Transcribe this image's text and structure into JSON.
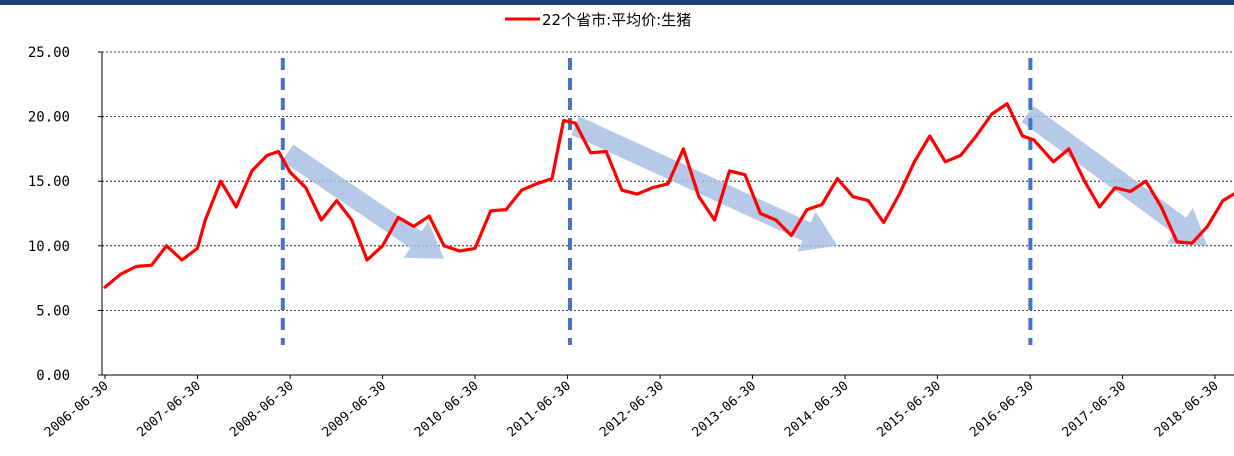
{
  "chart_data": {
    "type": "line",
    "title": "",
    "xlabel": "",
    "ylabel": "",
    "ylim": [
      0,
      25
    ],
    "yticks": [
      "0.00",
      "5.00",
      "10.00",
      "15.00",
      "20.00",
      "25.00"
    ],
    "xticks": [
      "2006-06-30",
      "2007-06-30",
      "2008-06-30",
      "2009-06-30",
      "2010-06-30",
      "2011-06-30",
      "2012-06-30",
      "2013-06-30",
      "2014-06-30",
      "2015-06-30",
      "2016-06-30",
      "2017-06-30",
      "2018-06-30"
    ],
    "grid": "horizontal-dashed",
    "legend": "top-center",
    "colors": {
      "series": "#ff0000",
      "top_bar": "#1f3f7a",
      "vlines": "#4472c4",
      "arrows": "#a9bfe4",
      "grid": "#000000"
    },
    "series": [
      {
        "name": "22个省市:平均价:生猪",
        "x": [
          "2006-06-30",
          "2006-08-31",
          "2006-10-31",
          "2006-12-31",
          "2007-02-28",
          "2007-04-30",
          "2007-06-30",
          "2007-07-31",
          "2007-09-30",
          "2007-11-30",
          "2008-01-31",
          "2008-03-31",
          "2008-05-15",
          "2008-06-30",
          "2008-08-31",
          "2008-10-31",
          "2008-12-31",
          "2009-02-28",
          "2009-04-30",
          "2009-06-30",
          "2009-08-31",
          "2009-10-31",
          "2009-12-31",
          "2010-02-28",
          "2010-04-30",
          "2010-06-30",
          "2010-08-31",
          "2010-10-31",
          "2010-12-31",
          "2011-02-28",
          "2011-04-30",
          "2011-06-15",
          "2011-07-31",
          "2011-09-30",
          "2011-11-30",
          "2012-01-31",
          "2012-03-31",
          "2012-05-31",
          "2012-07-31",
          "2012-09-30",
          "2012-11-30",
          "2013-01-31",
          "2013-03-31",
          "2013-05-31",
          "2013-07-31",
          "2013-09-30",
          "2013-11-30",
          "2014-01-31",
          "2014-03-31",
          "2014-05-31",
          "2014-07-31",
          "2014-09-30",
          "2014-11-30",
          "2015-01-31",
          "2015-03-31",
          "2015-05-31",
          "2015-07-31",
          "2015-09-30",
          "2015-11-30",
          "2016-01-31",
          "2016-03-31",
          "2016-05-31",
          "2016-07-15",
          "2016-09-30",
          "2016-11-30",
          "2017-01-31",
          "2017-03-31",
          "2017-05-31",
          "2017-07-31",
          "2017-09-30",
          "2017-11-30",
          "2018-01-31",
          "2018-03-31",
          "2018-05-31",
          "2018-07-31",
          "2018-09-30"
        ],
        "values": [
          6.8,
          7.8,
          8.4,
          8.5,
          10.0,
          8.9,
          9.8,
          12.0,
          15.0,
          13.0,
          15.8,
          17.0,
          17.3,
          15.7,
          14.5,
          12.0,
          13.5,
          12.0,
          8.9,
          10.0,
          12.2,
          11.5,
          12.3,
          10.0,
          9.6,
          9.8,
          12.7,
          12.8,
          14.3,
          14.8,
          15.2,
          19.7,
          19.5,
          17.2,
          17.3,
          14.3,
          14.0,
          14.5,
          14.8,
          17.5,
          13.8,
          12.0,
          15.8,
          15.5,
          12.5,
          12.0,
          10.8,
          12.8,
          13.2,
          15.2,
          13.8,
          13.5,
          11.8,
          14.0,
          16.5,
          18.5,
          16.5,
          17.0,
          18.5,
          20.2,
          21.0,
          18.5,
          18.2,
          16.5,
          17.5,
          15.0,
          13.0,
          14.5,
          14.2,
          15.0,
          13.0,
          10.3,
          10.2,
          11.5,
          13.5,
          14.2
        ]
      }
    ],
    "vlines": [
      "2008-06-01",
      "2011-07-10",
      "2016-07-01"
    ],
    "arrows": [
      {
        "from": [
          "2008-06-20",
          17.2
        ],
        "to": [
          "2010-02-28",
          9.0
        ]
      },
      {
        "from": [
          "2011-07-31",
          19.3
        ],
        "to": [
          "2014-05-31",
          10.0
        ]
      },
      {
        "from": [
          "2016-06-20",
          20.2
        ],
        "to": [
          "2018-05-31",
          10.0
        ]
      }
    ]
  }
}
